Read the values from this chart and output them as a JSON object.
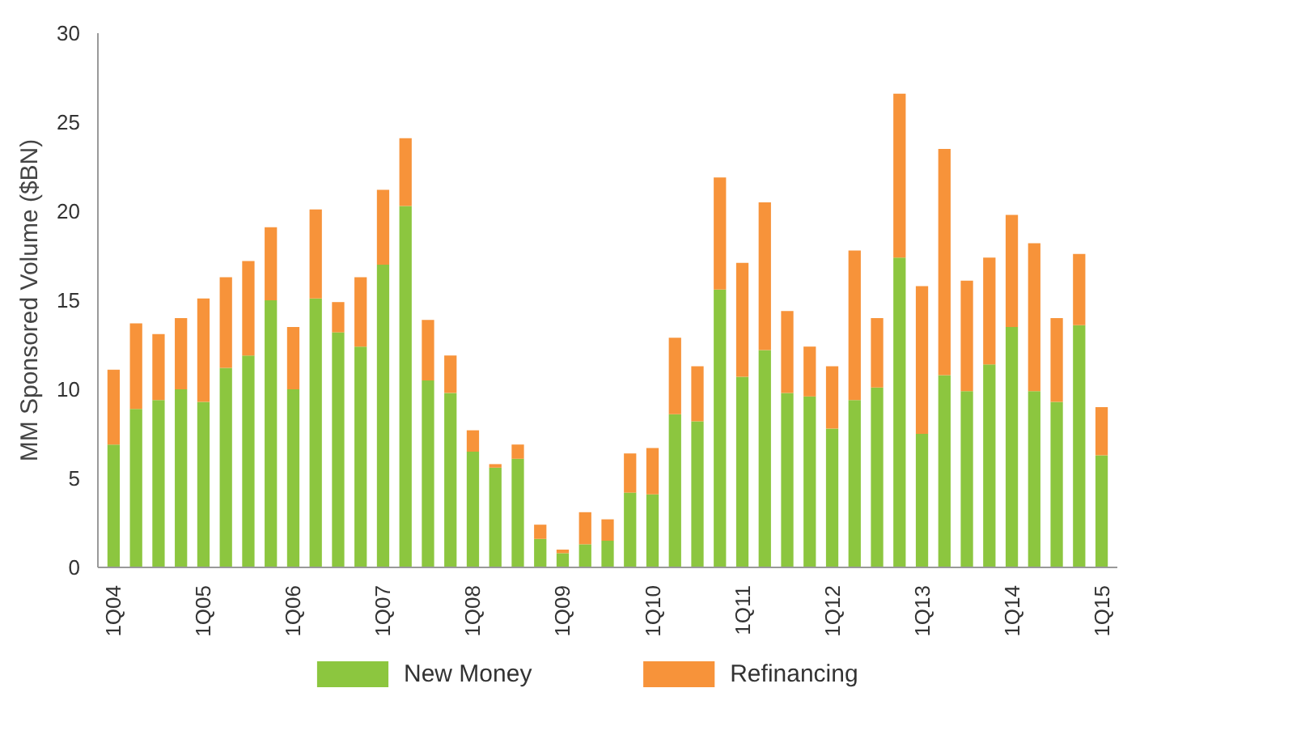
{
  "chart_data": {
    "type": "bar",
    "stacked": true,
    "ylabel": "MM Sponsored Volume ($BN)",
    "categories": [
      "1Q04",
      null,
      null,
      null,
      "1Q05",
      null,
      null,
      null,
      "1Q06",
      null,
      null,
      null,
      "1Q07",
      null,
      null,
      null,
      "1Q08",
      null,
      null,
      null,
      "1Q09",
      null,
      null,
      null,
      "1Q10",
      null,
      null,
      null,
      "1Q11",
      null,
      null,
      null,
      "1Q12",
      null,
      null,
      null,
      "1Q13",
      null,
      null,
      null,
      "1Q14",
      null,
      null,
      null,
      "1Q15"
    ],
    "series": [
      {
        "name": "New Money",
        "color": "#8cc63f",
        "values": [
          6.9,
          8.9,
          9.4,
          10.0,
          9.3,
          11.2,
          11.9,
          15.0,
          10.0,
          15.1,
          13.2,
          12.4,
          17.0,
          20.3,
          10.5,
          9.8,
          6.5,
          5.6,
          6.1,
          1.6,
          0.8,
          1.3,
          1.5,
          4.2,
          4.1,
          8.6,
          8.2,
          15.6,
          10.7,
          12.2,
          9.8,
          9.6,
          7.8,
          9.4,
          10.1,
          17.4,
          7.5,
          10.8,
          9.9,
          11.4,
          13.5,
          9.9,
          9.3,
          13.6,
          6.3
        ]
      },
      {
        "name": "Refinancing",
        "color": "#f7933a",
        "values": [
          4.2,
          4.8,
          3.7,
          4.0,
          5.8,
          5.1,
          5.3,
          4.1,
          3.5,
          5.0,
          1.7,
          3.9,
          4.2,
          3.8,
          3.4,
          2.1,
          1.2,
          0.2,
          0.8,
          0.8,
          0.2,
          1.8,
          1.2,
          2.2,
          2.6,
          4.3,
          3.1,
          6.3,
          6.4,
          8.3,
          4.6,
          2.8,
          3.5,
          8.4,
          3.9,
          9.2,
          8.3,
          12.7,
          6.2,
          6.0,
          6.3,
          8.3,
          4.7,
          4.0,
          2.7
        ]
      }
    ],
    "ylim": [
      0,
      30
    ],
    "yticks": [
      0,
      5,
      10,
      15,
      20,
      25,
      30
    ],
    "grid": false,
    "legend": "bottom"
  }
}
